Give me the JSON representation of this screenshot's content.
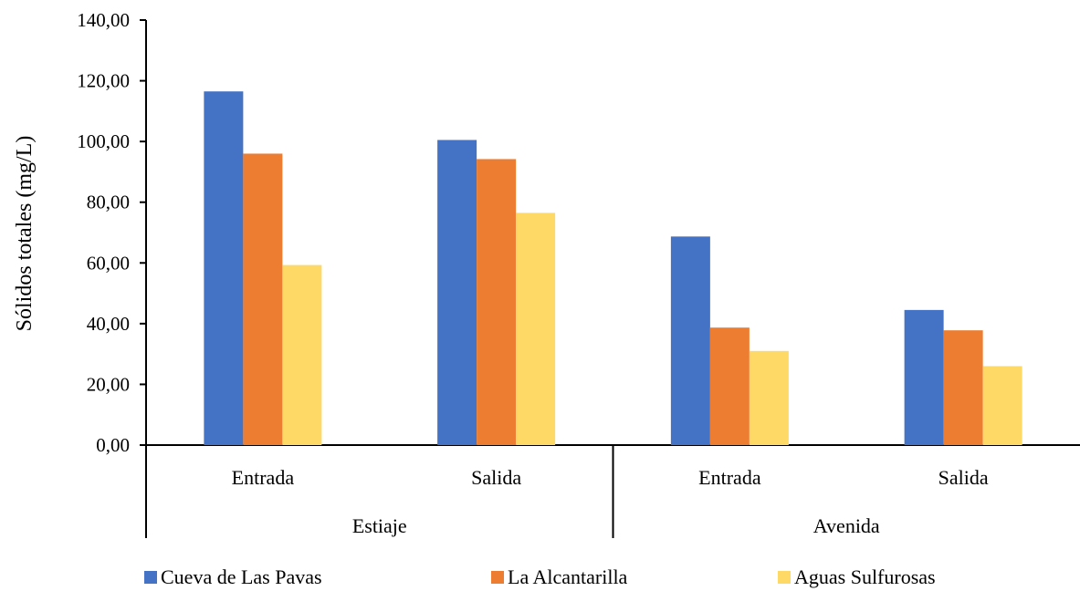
{
  "chart_data": {
    "type": "bar",
    "ylabel": "Sólidos totales (mg/L)",
    "xlabel": "",
    "ylim": [
      0,
      140
    ],
    "yticks": [
      "0,00",
      "20,00",
      "40,00",
      "60,00",
      "80,00",
      "100,00",
      "120,00",
      "140,00"
    ],
    "groups": [
      "Estiaje",
      "Avenida"
    ],
    "categories": [
      "Entrada",
      "Salida",
      "Entrada",
      "Salida"
    ],
    "series": [
      {
        "name": "Cueva de Las Pavas",
        "color": "#4472C4",
        "values": [
          116.5,
          100.5,
          68.7,
          44.5
        ]
      },
      {
        "name": "La Alcantarilla",
        "color": "#ED7D31",
        "values": [
          96.0,
          94.2,
          38.7,
          37.8
        ]
      },
      {
        "name": "Aguas Sulfurosas",
        "color": "#FFD966",
        "values": [
          59.3,
          76.5,
          31.0,
          26.0
        ]
      }
    ],
    "legend_position": "bottom",
    "grid": false
  }
}
